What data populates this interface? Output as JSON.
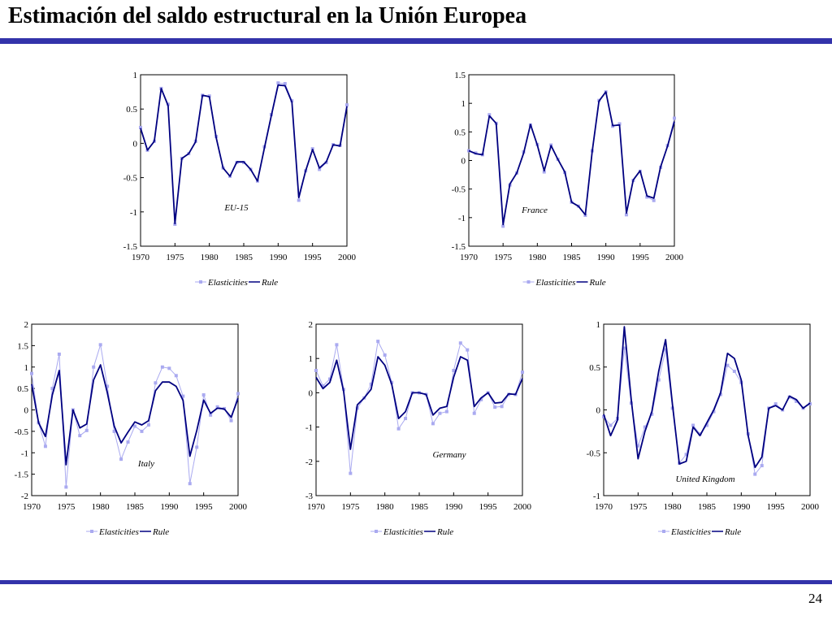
{
  "page": {
    "title": "Estimación del saldo estructural en la Unión Europea",
    "page_number": "24",
    "bar_color": "#3333aa"
  },
  "colors": {
    "elasticities": "#aaaaf0",
    "rule": "#000080"
  },
  "chart_data": [
    {
      "type": "line",
      "annotation": "EU-15",
      "x": [
        1970,
        1971,
        1972,
        1973,
        1974,
        1975,
        1976,
        1977,
        1978,
        1979,
        1980,
        1981,
        1982,
        1983,
        1984,
        1985,
        1986,
        1987,
        1988,
        1989,
        1990,
        1991,
        1992,
        1993,
        1994,
        1995,
        1996,
        1997,
        1998,
        1999,
        2000
      ],
      "xlim": [
        1970,
        2000
      ],
      "ylim": [
        -1.5,
        1
      ],
      "xticks": [
        "1970",
        "1975",
        "1980",
        "1985",
        "1990",
        "1995",
        "2000"
      ],
      "yticks": [
        "1",
        "0.5",
        "0",
        "-0.5",
        "-1",
        "-1.5"
      ],
      "legend": [
        "Elasticities",
        "Rule"
      ],
      "legend_position": "bottom",
      "series": [
        {
          "name": "Elasticities",
          "values": [
            0.23,
            -0.1,
            0.03,
            0.8,
            0.57,
            -1.18,
            -0.22,
            -0.15,
            0.03,
            0.7,
            0.69,
            0.1,
            -0.36,
            -0.48,
            -0.28,
            -0.28,
            -0.38,
            -0.55,
            -0.05,
            0.42,
            0.88,
            0.87,
            0.62,
            -0.83,
            -0.4,
            -0.08,
            -0.38,
            -0.28,
            -0.02,
            -0.03,
            0.56
          ]
        },
        {
          "name": "Rule",
          "values": [
            0.22,
            -0.1,
            0.03,
            0.8,
            0.55,
            -1.17,
            -0.22,
            -0.15,
            0.02,
            0.7,
            0.68,
            0.08,
            -0.36,
            -0.48,
            -0.27,
            -0.27,
            -0.38,
            -0.55,
            -0.07,
            0.4,
            0.85,
            0.84,
            0.6,
            -0.79,
            -0.4,
            -0.09,
            -0.36,
            -0.27,
            -0.02,
            -0.04,
            0.54
          ]
        }
      ]
    },
    {
      "type": "line",
      "annotation": "France",
      "x": [
        1970,
        1971,
        1972,
        1973,
        1974,
        1975,
        1976,
        1977,
        1978,
        1979,
        1980,
        1981,
        1982,
        1983,
        1984,
        1985,
        1986,
        1987,
        1988,
        1989,
        1990,
        1991,
        1992,
        1993,
        1994,
        1995,
        1996,
        1997,
        1998,
        1999,
        2000
      ],
      "xlim": [
        1970,
        2000
      ],
      "ylim": [
        -1.5,
        1.5
      ],
      "xticks": [
        "1970",
        "1975",
        "1980",
        "1985",
        "1990",
        "1995",
        "2000"
      ],
      "yticks": [
        "1.5",
        "1",
        "0.5",
        "0",
        "-0.5",
        "-1",
        "-1.5"
      ],
      "legend": [
        "Elasticities",
        "Rule"
      ],
      "legend_position": "bottom",
      "series": [
        {
          "name": "Elasticities",
          "values": [
            0.17,
            0.13,
            0.1,
            0.8,
            0.65,
            -1.15,
            -0.43,
            -0.22,
            0.15,
            0.62,
            0.28,
            -0.2,
            0.27,
            0.02,
            -0.21,
            -0.73,
            -0.8,
            -0.96,
            0.17,
            1.05,
            1.2,
            0.6,
            0.64,
            -0.95,
            -0.35,
            -0.19,
            -0.64,
            -0.7,
            -0.12,
            0.26,
            0.74
          ]
        },
        {
          "name": "Rule",
          "values": [
            0.17,
            0.12,
            0.1,
            0.78,
            0.65,
            -1.12,
            -0.41,
            -0.22,
            0.13,
            0.63,
            0.27,
            -0.18,
            0.26,
            0.02,
            -0.2,
            -0.73,
            -0.8,
            -0.95,
            0.15,
            1.04,
            1.2,
            0.61,
            0.62,
            -0.92,
            -0.34,
            -0.18,
            -0.62,
            -0.66,
            -0.11,
            0.25,
            0.68
          ]
        }
      ]
    },
    {
      "type": "line",
      "annotation": "Italy",
      "x": [
        1970,
        1971,
        1972,
        1973,
        1974,
        1975,
        1976,
        1977,
        1978,
        1979,
        1980,
        1981,
        1982,
        1983,
        1984,
        1985,
        1986,
        1987,
        1988,
        1989,
        1990,
        1991,
        1992,
        1993,
        1994,
        1995,
        1996,
        1997,
        1998,
        1999,
        2000
      ],
      "xlim": [
        1970,
        2000
      ],
      "ylim": [
        -2,
        2
      ],
      "xticks": [
        "1970",
        "1975",
        "1980",
        "1985",
        "1990",
        "1995",
        "2000"
      ],
      "yticks": [
        "2",
        "1.5",
        "1",
        "0.5",
        "0",
        "-0.5",
        "-1",
        "-1.5",
        "-2"
      ],
      "legend": [
        "Elasticities",
        "Rule"
      ],
      "legend_position": "bottom",
      "series": [
        {
          "name": "Elasticities",
          "values": [
            0.85,
            -0.3,
            -0.85,
            0.5,
            1.3,
            -1.8,
            0.0,
            -0.6,
            -0.48,
            1.0,
            1.52,
            0.55,
            -0.5,
            -1.15,
            -0.75,
            -0.38,
            -0.5,
            -0.35,
            0.63,
            1.0,
            0.97,
            0.8,
            0.32,
            -1.72,
            -0.87,
            0.35,
            -0.12,
            0.07,
            0.03,
            -0.25,
            0.38
          ]
        },
        {
          "name": "Rule",
          "values": [
            0.6,
            -0.3,
            -0.62,
            0.35,
            0.92,
            -1.28,
            0.0,
            -0.42,
            -0.33,
            0.7,
            1.05,
            0.4,
            -0.38,
            -0.77,
            -0.52,
            -0.28,
            -0.35,
            -0.25,
            0.45,
            0.65,
            0.65,
            0.55,
            0.22,
            -1.08,
            -0.48,
            0.23,
            -0.08,
            0.04,
            0.02,
            -0.17,
            0.27
          ]
        }
      ]
    },
    {
      "type": "line",
      "annotation": "Germany",
      "x": [
        1970,
        1971,
        1972,
        1973,
        1974,
        1975,
        1976,
        1977,
        1978,
        1979,
        1980,
        1981,
        1982,
        1983,
        1984,
        1985,
        1986,
        1987,
        1988,
        1989,
        1990,
        1991,
        1992,
        1993,
        1994,
        1995,
        1996,
        1997,
        1998,
        1999,
        2000
      ],
      "xlim": [
        1970,
        2000
      ],
      "ylim": [
        -3,
        2
      ],
      "xticks": [
        "1970",
        "1975",
        "1980",
        "1985",
        "1990",
        "1995",
        "2000"
      ],
      "yticks": [
        "2",
        "1",
        "0",
        "-1",
        "-2",
        "-3"
      ],
      "legend": [
        "Elasticities",
        "Rule"
      ],
      "legend_position": "bottom",
      "series": [
        {
          "name": "Elasticities",
          "values": [
            0.65,
            0.2,
            0.4,
            1.4,
            0.1,
            -2.35,
            -0.45,
            -0.15,
            0.25,
            1.5,
            1.1,
            0.3,
            -1.05,
            -0.75,
            0.0,
            0.0,
            -0.05,
            -0.9,
            -0.6,
            -0.55,
            0.65,
            1.45,
            1.25,
            -0.6,
            -0.2,
            0.0,
            -0.42,
            -0.4,
            -0.05,
            -0.05,
            0.6
          ]
        },
        {
          "name": "Rule",
          "values": [
            0.45,
            0.12,
            0.3,
            0.95,
            0.05,
            -1.65,
            -0.35,
            -0.15,
            0.1,
            1.05,
            0.8,
            0.25,
            -0.75,
            -0.55,
            0.0,
            0.0,
            -0.05,
            -0.65,
            -0.45,
            -0.4,
            0.45,
            1.05,
            0.95,
            -0.4,
            -0.15,
            0.0,
            -0.3,
            -0.28,
            -0.03,
            -0.05,
            0.42
          ]
        }
      ]
    },
    {
      "type": "line",
      "annotation": "United Kingdom",
      "x": [
        1970,
        1971,
        1972,
        1973,
        1974,
        1975,
        1976,
        1977,
        1978,
        1979,
        1980,
        1981,
        1982,
        1983,
        1984,
        1985,
        1986,
        1987,
        1988,
        1989,
        1990,
        1991,
        1992,
        1993,
        1994,
        1995,
        1996,
        1997,
        1998,
        1999,
        2000
      ],
      "xlim": [
        1970,
        2000
      ],
      "ylim": [
        -1,
        1
      ],
      "xticks": [
        "1970",
        "1975",
        "1980",
        "1985",
        "1990",
        "1995",
        "2000"
      ],
      "yticks": [
        "1",
        "0.5",
        "0",
        "-0.5",
        "-1"
      ],
      "legend": [
        "Elasticities",
        "Rule"
      ],
      "legend_position": "bottom",
      "series": [
        {
          "name": "Elasticities",
          "values": [
            -0.08,
            -0.18,
            -0.1,
            0.72,
            0.08,
            -0.42,
            -0.2,
            -0.05,
            0.35,
            0.7,
            0.02,
            -0.62,
            -0.52,
            -0.18,
            -0.28,
            -0.18,
            -0.02,
            0.18,
            0.52,
            0.45,
            0.32,
            -0.28,
            -0.75,
            -0.65,
            0.02,
            0.07,
            0.0,
            0.15,
            0.1,
            0.02,
            0.07
          ]
        },
        {
          "name": "Rule",
          "values": [
            -0.05,
            -0.3,
            -0.12,
            0.97,
            0.12,
            -0.57,
            -0.25,
            -0.02,
            0.45,
            0.82,
            0.06,
            -0.63,
            -0.6,
            -0.2,
            -0.3,
            -0.15,
            0.0,
            0.2,
            0.66,
            0.6,
            0.35,
            -0.3,
            -0.67,
            -0.55,
            0.02,
            0.05,
            0.0,
            0.16,
            0.12,
            0.02,
            0.08
          ]
        }
      ]
    }
  ]
}
